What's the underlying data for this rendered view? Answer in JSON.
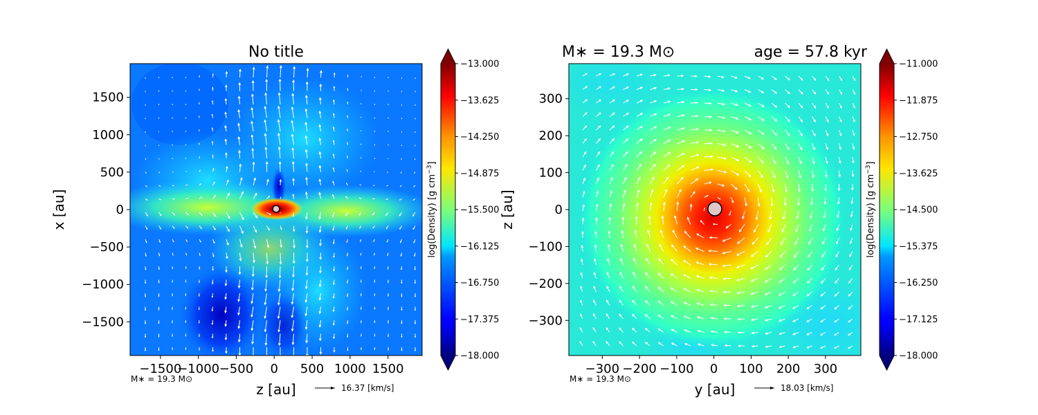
{
  "chart_data": [
    {
      "type": "heatmap",
      "title": "No title",
      "xlabel": "z [au]",
      "ylabel": "x [au]",
      "xlim": [
        -1900,
        1950
      ],
      "ylim": [
        -1950,
        1950
      ],
      "xticks": [
        "−1500",
        "−1000",
        "−500",
        "0",
        "500",
        "1000",
        "1500"
      ],
      "xtick_values": [
        -1500,
        -1000,
        -500,
        0,
        500,
        1000,
        1500
      ],
      "yticks": [
        "1500",
        "1000",
        "500",
        "0",
        "−500",
        "−1000",
        "−1500"
      ],
      "ytick_values": [
        1500,
        1000,
        500,
        0,
        -500,
        -1000,
        -1500
      ],
      "colorbar": {
        "label": "log(Density) [g cm$^{-3}$]",
        "label_main": "log(Density) [g cm",
        "label_sup": "−3",
        "label_end": "]",
        "min": -18.0,
        "max": -13.0,
        "ticks": [
          "−13.000",
          "−13.625",
          "−14.250",
          "−14.875",
          "−15.500",
          "−16.125",
          "−16.750",
          "−17.375",
          "−18.000"
        ],
        "tick_values": [
          -13.0,
          -13.625,
          -14.25,
          -14.875,
          -15.5,
          -16.125,
          -16.75,
          -17.375,
          -18.0
        ]
      },
      "mass_note": "M∗ = 19.3 M⊙",
      "vector_key": "16.37 [km/s]",
      "grid": false,
      "colormap": "jet"
    },
    {
      "type": "heatmap",
      "title_left": "M∗ = 19.3 M⊙",
      "title_right": "age = 57.8 kyr",
      "xlabel": "y [au]",
      "ylabel": "z [au]",
      "xlim": [
        -390,
        395
      ],
      "ylim": [
        -395,
        395
      ],
      "xticks": [
        "−300",
        "−200",
        "−100",
        "0",
        "100",
        "200",
        "300"
      ],
      "xtick_values": [
        -300,
        -200,
        -100,
        0,
        100,
        200,
        300
      ],
      "yticks": [
        "300",
        "200",
        "100",
        "0",
        "−100",
        "−200",
        "−300"
      ],
      "ytick_values": [
        300,
        200,
        100,
        0,
        -100,
        -200,
        -300
      ],
      "colorbar": {
        "label": "log(Density) [g cm$^{-3}$]",
        "label_main": "log(Density) [g cm",
        "label_sup": "−3",
        "label_end": "]",
        "min": -18.0,
        "max": -11.0,
        "ticks": [
          "−11.000",
          "−11.875",
          "−12.750",
          "−13.625",
          "−14.500",
          "−15.375",
          "−16.250",
          "−17.125",
          "−18.000"
        ],
        "tick_values": [
          -11.0,
          -11.875,
          -12.75,
          -13.625,
          -14.5,
          -15.375,
          -16.25,
          -17.125,
          -18.0
        ]
      },
      "mass_note": "M∗ = 19.3 M⊙",
      "vector_key": "18.03 [km/s]",
      "grid": false,
      "colormap": "jet"
    }
  ]
}
